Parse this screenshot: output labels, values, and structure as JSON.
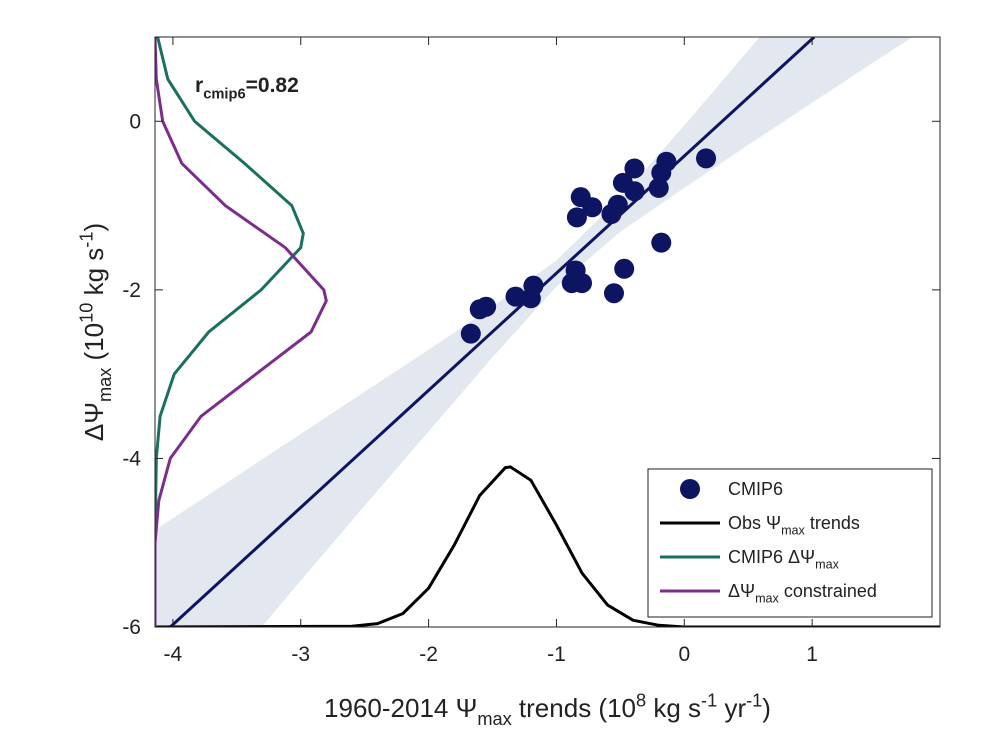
{
  "chart_data": {
    "type": "scatter",
    "xlabel": [
      {
        "t": "1960-2014 Ψ"
      },
      {
        "t": "max",
        "s": "sub"
      },
      {
        "t": " trends (10"
      },
      {
        "t": "8",
        "s": "sup"
      },
      {
        "t": " kg s"
      },
      {
        "t": "-1",
        "s": "sup"
      },
      {
        "t": " yr"
      },
      {
        "t": "-1",
        "s": "sup"
      },
      {
        "t": ")"
      }
    ],
    "ylabel": [
      {
        "t": "ΔΨ"
      },
      {
        "t": "max",
        "s": "sub"
      },
      {
        "t": " (10"
      },
      {
        "t": "10",
        "s": "sup"
      },
      {
        "t": " kg s"
      },
      {
        "t": "-1",
        "s": "sup"
      },
      {
        "t": ")"
      }
    ],
    "annotation": [
      {
        "t": "r"
      },
      {
        "t": "cmip6",
        "s": "sub"
      },
      {
        "t": "=0.82"
      }
    ],
    "xlim": [
      -4.14,
      2
    ],
    "ylim": [
      -6,
      1
    ],
    "xticks": [
      -4,
      -3,
      -2,
      -1,
      0,
      1
    ],
    "yticks": [
      -6,
      -4,
      -2,
      0
    ],
    "legend": "lower right",
    "series": [
      {
        "type": "band",
        "color": "#e2e7f0",
        "x": [
          -4.14,
          -3.5,
          -3,
          -2.5,
          -2,
          -1.5,
          -1,
          -0.5,
          0,
          0.5,
          1,
          1.5,
          2
        ],
        "upper": [
          -4.85,
          -4.21,
          -3.71,
          -3.21,
          -2.71,
          -2.2,
          -1.65,
          -0.91,
          -0.05,
          0.84,
          1.73,
          2.62,
          3.51
        ],
        "lower": [
          -7.49,
          -6.35,
          -5.45,
          -4.56,
          -3.68,
          -2.8,
          -1.96,
          -1.31,
          -0.79,
          -0.28,
          0.22,
          0.72,
          1.21
        ]
      },
      {
        "type": "line",
        "color": "#0d1563",
        "x": [
          -4.02,
          1.016
        ],
        "values": [
          -6,
          1
        ]
      },
      {
        "type": "scatter",
        "name": [
          {
            "t": "CMIP6"
          }
        ],
        "color": "#0d1563",
        "x": [
          -1.67,
          -1.6,
          -1.55,
          -1.32,
          -1.2,
          -1.18,
          -0.85,
          -0.88,
          -0.8,
          -0.84,
          -0.81,
          -0.72,
          -0.57,
          -0.55,
          -0.52,
          -0.47,
          -0.48,
          -0.39,
          -0.39,
          -0.2,
          -0.18,
          -0.14,
          -0.18,
          0.17
        ],
        "values": [
          -2.52,
          -2.23,
          -2.2,
          -2.08,
          -2.1,
          -1.95,
          -1.77,
          -1.92,
          -1.92,
          -1.14,
          -0.9,
          -1.02,
          -1.1,
          -2.04,
          -0.99,
          -1.75,
          -0.73,
          -0.83,
          -0.56,
          -0.79,
          -0.61,
          -0.48,
          -1.44,
          -0.44
        ]
      },
      {
        "type": "line",
        "name": [
          {
            "t": "Obs Ψ"
          },
          {
            "t": "max",
            "s": "sub"
          },
          {
            "t": " trends"
          }
        ],
        "color": "#000000",
        "x": [
          -4.14,
          -2.6,
          -2.4,
          -2.2,
          -2.0,
          -1.8,
          -1.6,
          -1.4,
          -1.36,
          -1.2,
          -1.0,
          -0.8,
          -0.6,
          -0.4,
          -0.2,
          0,
          2
        ],
        "values": [
          -6,
          -5.99,
          -5.96,
          -5.84,
          -5.54,
          -5.03,
          -4.44,
          -4.11,
          -4.1,
          -4.26,
          -4.79,
          -5.36,
          -5.74,
          -5.92,
          -5.98,
          -6,
          -6
        ]
      },
      {
        "type": "line",
        "name": [
          {
            "t": "CMIP6 ΔΨ"
          },
          {
            "t": "max",
            "s": "sub"
          }
        ],
        "color": "#1a7060",
        "x": [
          -4.12,
          -4.04,
          -3.83,
          -3.44,
          -3.07,
          -2.98,
          -3.0,
          -3.31,
          -3.72,
          -3.99,
          -4.1,
          -4.13,
          -4.14,
          -4.14
        ],
        "values": [
          1,
          0.5,
          0,
          -0.5,
          -1,
          -1.33,
          -1.5,
          -2,
          -2.5,
          -3,
          -3.5,
          -4,
          -5,
          -6
        ]
      },
      {
        "type": "line",
        "name": [
          {
            "t": "ΔΨ"
          },
          {
            "t": "max",
            "s": "sub"
          },
          {
            "t": " constrained"
          }
        ],
        "color": "#7b2d8e",
        "x": [
          -4.14,
          -4.13,
          -4.08,
          -3.93,
          -3.59,
          -3.12,
          -2.82,
          -2.8,
          -2.92,
          -3.35,
          -3.78,
          -4.02,
          -4.11,
          -4.14,
          -4.14
        ],
        "values": [
          1,
          0.5,
          0,
          -0.5,
          -1,
          -1.5,
          -2,
          -2.13,
          -2.5,
          -3,
          -3.5,
          -4,
          -4.5,
          -5,
          -6
        ]
      }
    ]
  }
}
